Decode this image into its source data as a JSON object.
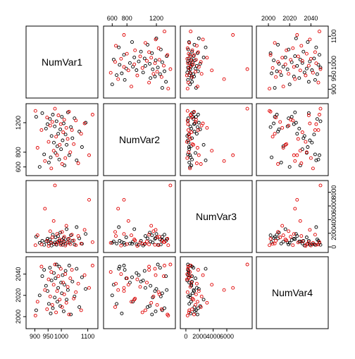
{
  "chart_data": {
    "type": "scatter",
    "layout": "pairs",
    "variables": [
      "NumVar1",
      "NumVar2",
      "NumVar3",
      "NumVar4"
    ],
    "ranges": {
      "NumVar1": [
        880,
        1125
      ],
      "NumVar2": [
        530,
        1410
      ],
      "NumVar3": [
        -300,
        9200
      ],
      "NumVar4": [
        1992,
        2053
      ]
    },
    "ticks": {
      "NumVar1": [
        900,
        950,
        1000,
        1100
      ],
      "NumVar2": [
        600,
        800,
        1200
      ],
      "NumVar3": [
        0,
        2000,
        4000,
        6000
      ],
      "NumVar4": [
        2000,
        2020,
        2040
      ]
    },
    "right_axis_ticks": {
      "NumVar1": [
        900,
        950,
        1000,
        1100
      ],
      "NumVar3": [
        0,
        2000,
        4000,
        6000,
        8000
      ]
    },
    "left_axis_ticks": {
      "NumVar2": [
        600,
        800,
        1200
      ],
      "NumVar4": [
        2000,
        2020,
        2040
      ]
    },
    "series": [
      {
        "color": "#000000",
        "points": [
          [
            905,
            1280,
            1500,
            2006
          ],
          [
            918,
            600,
            600,
            2020
          ],
          [
            928,
            1330,
            900,
            2038
          ],
          [
            935,
            770,
            300,
            2044
          ],
          [
            942,
            1120,
            800,
            2029
          ],
          [
            948,
            1180,
            1200,
            2024
          ],
          [
            953,
            660,
            500,
            2012
          ],
          [
            957,
            1250,
            1100,
            2046
          ],
          [
            960,
            730,
            700,
            2003
          ],
          [
            963,
            1020,
            200,
            2034
          ],
          [
            968,
            1310,
            1800,
            2008
          ],
          [
            972,
            930,
            400,
            2041
          ],
          [
            975,
            1150,
            650,
            2018
          ],
          [
            978,
            790,
            1400,
            2036
          ],
          [
            982,
            1220,
            300,
            2049
          ],
          [
            985,
            880,
            750,
            2014
          ],
          [
            988,
            1050,
            1600,
            2027
          ],
          [
            992,
            700,
            900,
            2047
          ],
          [
            996,
            1110,
            2100,
            2010
          ],
          [
            999,
            840,
            500,
            2032
          ],
          [
            1002,
            1280,
            1000,
            2022
          ],
          [
            1005,
            960,
            300,
            2039
          ],
          [
            1009,
            1190,
            1300,
            2005
          ],
          [
            1012,
            620,
            800,
            2030
          ],
          [
            1016,
            1040,
            400,
            2043
          ],
          [
            1020,
            900,
            2600,
            2016
          ],
          [
            1025,
            1340,
            1150,
            2025
          ],
          [
            1030,
            760,
            600,
            2048
          ],
          [
            1036,
            1140,
            1700,
            2002
          ],
          [
            1042,
            990,
            900,
            2033
          ],
          [
            1050,
            1260,
            350,
            2019
          ],
          [
            1058,
            690,
            2900,
            2045
          ],
          [
            1068,
            1080,
            1250,
            2009
          ],
          [
            1078,
            870,
            450,
            2037
          ],
          [
            1092,
            1200,
            1900,
            2026
          ]
        ]
      },
      {
        "color": "#e00000",
        "points": [
          [
            902,
            1360,
            250,
            2001
          ],
          [
            910,
            860,
            1700,
            2014
          ],
          [
            925,
            1100,
            350,
            2047
          ],
          [
            938,
            680,
            5600,
            2025
          ],
          [
            946,
            1270,
            900,
            2007
          ],
          [
            952,
            940,
            150,
            2035
          ],
          [
            958,
            1160,
            2300,
            2019
          ],
          [
            962,
            580,
            600,
            2042
          ],
          [
            966,
            1210,
            1400,
            2011
          ],
          [
            971,
            820,
            3800,
            2030
          ],
          [
            976,
            1390,
            9000,
            2049
          ],
          [
            980,
            1010,
            450,
            2004
          ],
          [
            984,
            760,
            1900,
            2024
          ],
          [
            989,
            1300,
            700,
            2038
          ],
          [
            994,
            900,
            1100,
            2016
          ],
          [
            998,
            1180,
            300,
            2045
          ],
          [
            1003,
            640,
            2200,
            2009
          ],
          [
            1007,
            1070,
            800,
            2032
          ],
          [
            1011,
            1240,
            1500,
            2021
          ],
          [
            1015,
            720,
            200,
            2040
          ],
          [
            1019,
            1130,
            3100,
            2013
          ],
          [
            1024,
            980,
            650,
            2028
          ],
          [
            1029,
            1350,
            1200,
            2002
          ],
          [
            1034,
            800,
            400,
            2036
          ],
          [
            1040,
            1100,
            1800,
            2044
          ],
          [
            1047,
            910,
            950,
            2017
          ],
          [
            1055,
            1230,
            250,
            2023
          ],
          [
            1064,
            650,
            1600,
            2031
          ],
          [
            1075,
            1050,
            500,
            2006
          ],
          [
            1088,
            1190,
            2500,
            2039
          ],
          [
            1105,
            760,
            6900,
            2027
          ],
          [
            1118,
            1310,
            700,
            2048
          ]
        ]
      }
    ]
  }
}
